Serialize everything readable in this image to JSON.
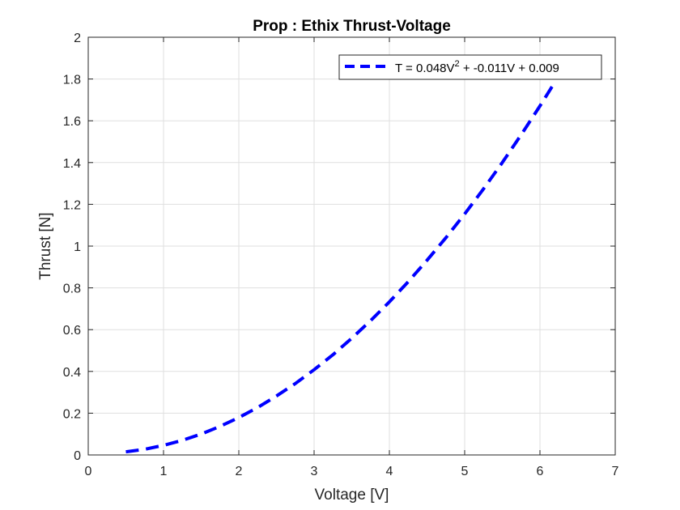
{
  "chart_data": {
    "type": "line",
    "title": "Prop : Ethix Thrust-Voltage",
    "xlabel": "Voltage [V]",
    "ylabel": "Thrust [N]",
    "xlim": [
      0,
      7
    ],
    "ylim": [
      0,
      2
    ],
    "xticks": [
      0,
      1,
      2,
      3,
      4,
      5,
      6,
      7
    ],
    "yticks": [
      0,
      0.2,
      0.4,
      0.6,
      0.8,
      1,
      1.2,
      1.4,
      1.6,
      1.8,
      2
    ],
    "xtick_labels": [
      "0",
      "1",
      "2",
      "3",
      "4",
      "5",
      "6",
      "7"
    ],
    "ytick_labels": [
      "0",
      "0.2",
      "0.4",
      "0.6",
      "0.8",
      "1",
      "1.2",
      "1.4",
      "1.6",
      "1.8",
      "2"
    ],
    "grid": true,
    "legend_position": "top-right",
    "series": [
      {
        "name": "T = 0.048V^2 + -0.011V + 0.009",
        "legend": {
          "prefix": "T = 0.048V",
          "sup": "2",
          "suffix": " + -0.011V + 0.009"
        },
        "style": "dashed",
        "color": "#0000ff",
        "coefficients": {
          "a": 0.048,
          "b": -0.011,
          "c": 0.009
        },
        "x": [
          0.5,
          0.75,
          1.0,
          1.25,
          1.5,
          1.75,
          2.0,
          2.25,
          2.5,
          2.75,
          3.0,
          3.25,
          3.5,
          3.75,
          4.0,
          4.25,
          4.5,
          4.75,
          5.0,
          5.25,
          5.5,
          5.75,
          6.0,
          6.2
        ],
        "y": [
          0.015,
          0.027,
          0.046,
          0.07,
          0.1,
          0.137,
          0.179,
          0.227,
          0.282,
          0.342,
          0.408,
          0.48,
          0.559,
          0.643,
          0.733,
          0.829,
          0.932,
          1.04,
          1.154,
          1.274,
          1.4,
          1.533,
          1.671,
          1.786
        ]
      }
    ]
  }
}
